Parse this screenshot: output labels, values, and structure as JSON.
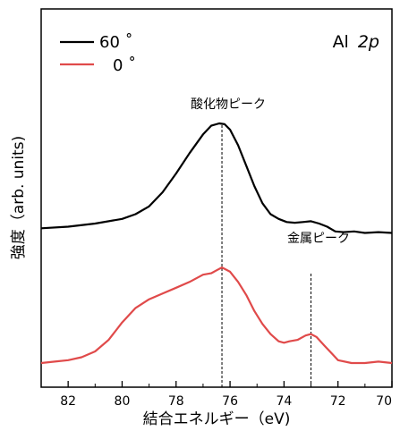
{
  "chart_data": {
    "type": "line",
    "xlabel": "結合エネルギー（eV)",
    "ylabel": "強度（arb. units)",
    "xlim": [
      83,
      70
    ],
    "x_reversed": true,
    "x_ticks": [
      82,
      80,
      78,
      76,
      74,
      72,
      70
    ],
    "y_ticks_shown": false,
    "panel_label": {
      "prefix": "Al",
      "italic": "2p"
    },
    "legend_placement": "top-left",
    "colors": {
      "black": "#000000",
      "red": "#e04a4a"
    },
    "series": [
      {
        "name": "60 ˚",
        "color": "#000000",
        "x": [
          83.0,
          82.0,
          81.0,
          80.0,
          79.5,
          79.0,
          78.5,
          78.0,
          77.5,
          77.0,
          76.7,
          76.4,
          76.2,
          76.0,
          75.7,
          75.4,
          75.1,
          74.8,
          74.5,
          74.2,
          73.9,
          73.6,
          73.3,
          73.0,
          72.7,
          72.4,
          72.1,
          71.8,
          71.4,
          71.0,
          70.5,
          70.0
        ],
        "y": [
          0.33,
          0.34,
          0.36,
          0.39,
          0.42,
          0.47,
          0.56,
          0.68,
          0.81,
          0.93,
          0.985,
          1.0,
          0.995,
          0.96,
          0.86,
          0.73,
          0.6,
          0.49,
          0.42,
          0.39,
          0.37,
          0.365,
          0.37,
          0.375,
          0.36,
          0.34,
          0.31,
          0.305,
          0.31,
          0.3,
          0.305,
          0.3
        ]
      },
      {
        "name": "0 ˚",
        "color": "#e04a4a",
        "x": [
          83.0,
          82.5,
          82.0,
          81.5,
          81.0,
          80.5,
          80.0,
          79.5,
          79.0,
          78.5,
          78.0,
          77.5,
          77.0,
          76.7,
          76.5,
          76.3,
          76.0,
          75.7,
          75.4,
          75.1,
          74.8,
          74.5,
          74.2,
          74.0,
          73.8,
          73.5,
          73.2,
          73.0,
          72.8,
          72.5,
          72.2,
          72.0,
          71.5,
          71.0,
          70.5,
          70.0
        ],
        "y": [
          0.0,
          0.01,
          0.02,
          0.04,
          0.08,
          0.16,
          0.28,
          0.38,
          0.44,
          0.48,
          0.52,
          0.56,
          0.61,
          0.62,
          0.64,
          0.66,
          0.63,
          0.56,
          0.47,
          0.36,
          0.27,
          0.2,
          0.15,
          0.14,
          0.15,
          0.16,
          0.19,
          0.2,
          0.18,
          0.12,
          0.06,
          0.02,
          0.0,
          0.0,
          0.01,
          0.0
        ]
      }
    ],
    "annotations": [
      {
        "text": "酸化物ピーク",
        "x": 76.3
      },
      {
        "text": "金属ピーク",
        "x": 73.0
      }
    ]
  }
}
